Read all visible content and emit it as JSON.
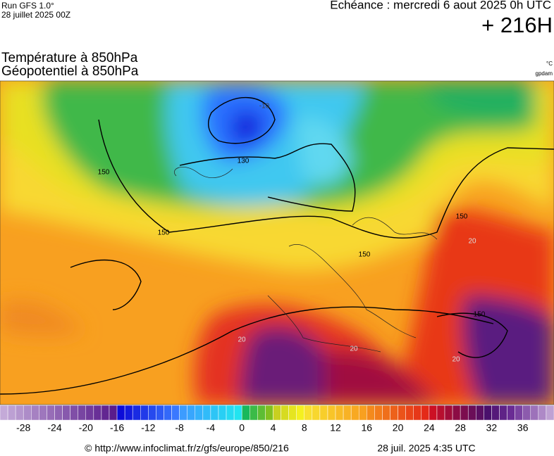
{
  "header": {
    "run": "Run GFS 1.0°",
    "date": "28 juillet 2025 00Z",
    "echeance": "Echéance : mercredi 6 aout 2025 0h UTC",
    "range": "+ 216H"
  },
  "titles": [
    "Température à 850hPa",
    "Géopotentiel à 850hPa"
  ],
  "units": {
    "temp": "°C",
    "geo": "gpdam"
  },
  "contour_labels": [
    "-10",
    "130",
    "150",
    "150",
    "150",
    "150",
    "150",
    "20",
    "20",
    "20",
    "20"
  ],
  "colorbar": {
    "range": [
      -31,
      40
    ],
    "ticks": [
      -28,
      -24,
      -20,
      -16,
      -12,
      -8,
      -4,
      0,
      4,
      8,
      12,
      16,
      20,
      24,
      28,
      32,
      36
    ],
    "stops": [
      {
        "value": -31,
        "color": "#c4aad8"
      },
      {
        "value": -17,
        "color": "#5a1c8c"
      },
      {
        "value": -16,
        "color": "#0c0cd8"
      },
      {
        "value": -9,
        "color": "#3a78ff"
      },
      {
        "value": -8,
        "color": "#3c9cff"
      },
      {
        "value": -1,
        "color": "#22e4f0"
      },
      {
        "value": 0,
        "color": "#18b85c"
      },
      {
        "value": 3,
        "color": "#80c020"
      },
      {
        "value": 4,
        "color": "#c8d020"
      },
      {
        "value": 7,
        "color": "#f4f020"
      },
      {
        "value": 8,
        "color": "#f8e030"
      },
      {
        "value": 15,
        "color": "#f8a020"
      },
      {
        "value": 16,
        "color": "#f48a1c"
      },
      {
        "value": 23,
        "color": "#e42a18"
      },
      {
        "value": 24,
        "color": "#cc1024"
      },
      {
        "value": 27,
        "color": "#8c0c44"
      },
      {
        "value": 31,
        "color": "#4a106c"
      },
      {
        "value": 34,
        "color": "#6a2c94"
      },
      {
        "value": 40,
        "color": "#d0b8e0"
      }
    ]
  },
  "footer": {
    "source": "© http://www.infoclimat.fr/z/gfs/europe/850/216",
    "timestamp": "28 juil. 2025  4:35 UTC"
  }
}
